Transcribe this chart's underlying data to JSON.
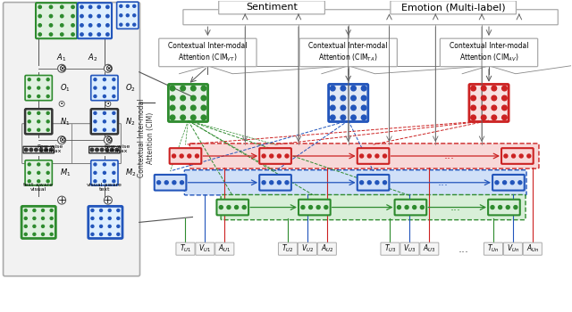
{
  "bg_color": "#ffffff",
  "green": "#2e8b2e",
  "blue": "#2255bb",
  "red": "#cc2222",
  "lgreen": "#d8efd8",
  "lblue": "#d0e0f8",
  "lred": "#f8d8d8",
  "gray": "#888888",
  "sentiment_label": "Sentiment",
  "emotion_label": "Emotion (Multi-label)",
  "cim_vt": "Contextual Inter-modal\nAttention (CIM$_{VT}$)",
  "cim_ta": "Contextual Inter-modal\nAttention (CIM$_{TA}$)",
  "cim_av": "Contextual Inter-modal\nAttention (CIM$_{AV}$)",
  "cim_side": "Contextual Inter-modal\nAttention (CIM)",
  "bottom_labels": [
    "$T_{U1}$",
    "$V_{U1}$",
    "$A_{U1}$",
    "$T_{U2}$",
    "$V_{U2}$",
    "$A_{U2}$",
    "$T_{U3}$",
    "$V_{U3}$",
    "$A_{U3}$",
    "...",
    "$T_{Un}$",
    "$V_{Un}$",
    "$A_{Un}$"
  ],
  "bottom_colors": [
    "green",
    "blue",
    "red",
    "green",
    "blue",
    "red",
    "green",
    "blue",
    "red",
    "black",
    "green",
    "blue",
    "red"
  ]
}
